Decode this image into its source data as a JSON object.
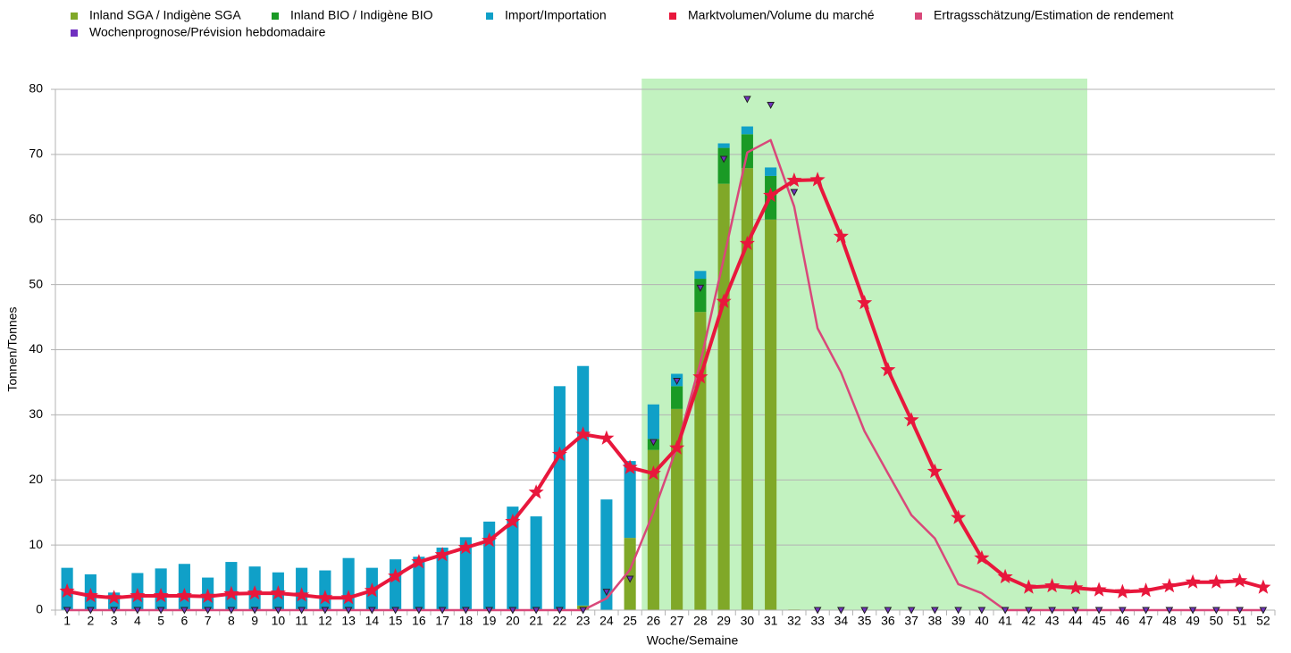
{
  "chart_data": {
    "type": "bar",
    "x_label": "Woche/Semaine",
    "y_label": "Tonnen/Tonnes",
    "categories": [
      "1",
      "2",
      "3",
      "4",
      "5",
      "6",
      "7",
      "8",
      "9",
      "10",
      "11",
      "12",
      "13",
      "14",
      "15",
      "16",
      "17",
      "18",
      "19",
      "20",
      "21",
      "22",
      "23",
      "24",
      "25",
      "26",
      "27",
      "28",
      "29",
      "30",
      "31",
      "32",
      "33",
      "34",
      "35",
      "36",
      "37",
      "38",
      "39",
      "40",
      "41",
      "42",
      "43",
      "44",
      "45",
      "46",
      "47",
      "48",
      "49",
      "50",
      "51",
      "52"
    ],
    "ylim": [
      0,
      80
    ],
    "yticks": [
      0,
      10,
      20,
      30,
      40,
      50,
      60,
      70,
      80
    ],
    "grid": true,
    "highlight": {
      "from": "26",
      "to": "44",
      "color": "#c2f2c0"
    },
    "series": [
      {
        "name": "Inland SGA / Indigène SGA",
        "type": "bar",
        "color": "#80a828",
        "values": [
          0,
          0,
          0,
          0,
          0,
          0,
          0,
          0,
          0,
          0,
          0,
          0,
          0,
          0,
          0,
          0,
          0,
          0,
          0,
          0,
          0,
          0,
          0.7,
          0,
          11.1,
          24.6,
          30.9,
          45.8,
          65.5,
          67.9,
          60.0,
          0.1,
          0,
          0,
          0,
          0,
          0,
          0,
          0,
          0,
          0,
          0,
          0,
          0,
          0,
          0,
          0,
          0,
          0,
          0,
          0,
          0
        ]
      },
      {
        "name": "Inland BIO / Indigène BIO",
        "type": "bar",
        "color": "#1a9a25",
        "values": [
          0,
          0,
          0,
          0,
          0,
          0,
          0,
          0,
          0,
          0,
          0,
          0,
          0,
          0,
          0,
          0,
          0,
          0,
          0,
          0,
          0,
          0,
          0,
          0,
          0,
          1.7,
          3.5,
          5.1,
          5.5,
          5.2,
          6.7,
          0,
          0,
          0,
          0,
          0,
          0,
          0,
          0,
          0,
          0,
          0,
          0,
          0,
          0,
          0,
          0,
          0,
          0,
          0,
          0,
          0
        ]
      },
      {
        "name": "Import/Importation",
        "type": "bar",
        "color": "#10a0c8",
        "values": [
          6.5,
          5.5,
          2.7,
          5.7,
          6.4,
          7.1,
          5.0,
          7.4,
          6.7,
          5.8,
          6.5,
          6.1,
          8.0,
          6.5,
          7.8,
          8.2,
          9.6,
          11.2,
          13.6,
          15.9,
          14.4,
          34.4,
          36.8,
          17.0,
          11.8,
          5.3,
          1.9,
          1.2,
          0.7,
          1.2,
          1.3,
          0,
          0,
          0,
          0,
          0,
          0,
          0,
          0,
          0,
          0,
          0,
          0,
          0,
          0,
          0,
          0,
          0,
          0,
          0,
          0,
          0
        ]
      },
      {
        "name": "Marktvolumen/Volume du marché",
        "type": "line",
        "marker": "star",
        "color": "#e8173c",
        "values": [
          2.9,
          2.2,
          1.9,
          2.2,
          2.2,
          2.2,
          2.1,
          2.5,
          2.6,
          2.6,
          2.3,
          1.9,
          1.9,
          3.0,
          5.2,
          7.4,
          8.5,
          9.6,
          10.7,
          13.6,
          18.1,
          23.9,
          27.0,
          26.4,
          21.9,
          21.0,
          24.9,
          35.8,
          47.4,
          56.3,
          63.7,
          66.0,
          66.1,
          57.4,
          47.2,
          36.9,
          29.2,
          21.3,
          14.2,
          8.0,
          5.1,
          3.5,
          3.7,
          3.4,
          3.1,
          2.8,
          3.0,
          3.7,
          4.3,
          4.3,
          4.5,
          3.5
        ]
      },
      {
        "name": "Ertragsschätzung/Estimation de rendement",
        "type": "line",
        "color": "#d9487a",
        "values": [
          0,
          0,
          0,
          0,
          0,
          0,
          0,
          0,
          0,
          0,
          0,
          0,
          0,
          0,
          0,
          0,
          0,
          0,
          0,
          0,
          0,
          0,
          0,
          1.8,
          6.2,
          15.0,
          25.0,
          38.0,
          54.0,
          70.3,
          72.2,
          62.0,
          43.3,
          36.5,
          27.5,
          21.0,
          14.6,
          11.0,
          4.0,
          2.6,
          0,
          0,
          0,
          0,
          0,
          0,
          0,
          0,
          0,
          0,
          0,
          0
        ]
      },
      {
        "name": "Wochenprognose/Prévision hebdomadaire",
        "type": "scatter",
        "marker": "triangle",
        "color": "#7030c0",
        "values": [
          0,
          0,
          0,
          0,
          0,
          0,
          0,
          0,
          0,
          0,
          0,
          0,
          0,
          0,
          0,
          0,
          0,
          0,
          0,
          0,
          0,
          0,
          0,
          2.8,
          4.8,
          25.8,
          35.2,
          49.5,
          69.3,
          78.5,
          77.6,
          64.2,
          0,
          0,
          0,
          0,
          0,
          0,
          0,
          0,
          0,
          0,
          0,
          0,
          0,
          0,
          0,
          0,
          0,
          0,
          0,
          0
        ]
      }
    ]
  }
}
